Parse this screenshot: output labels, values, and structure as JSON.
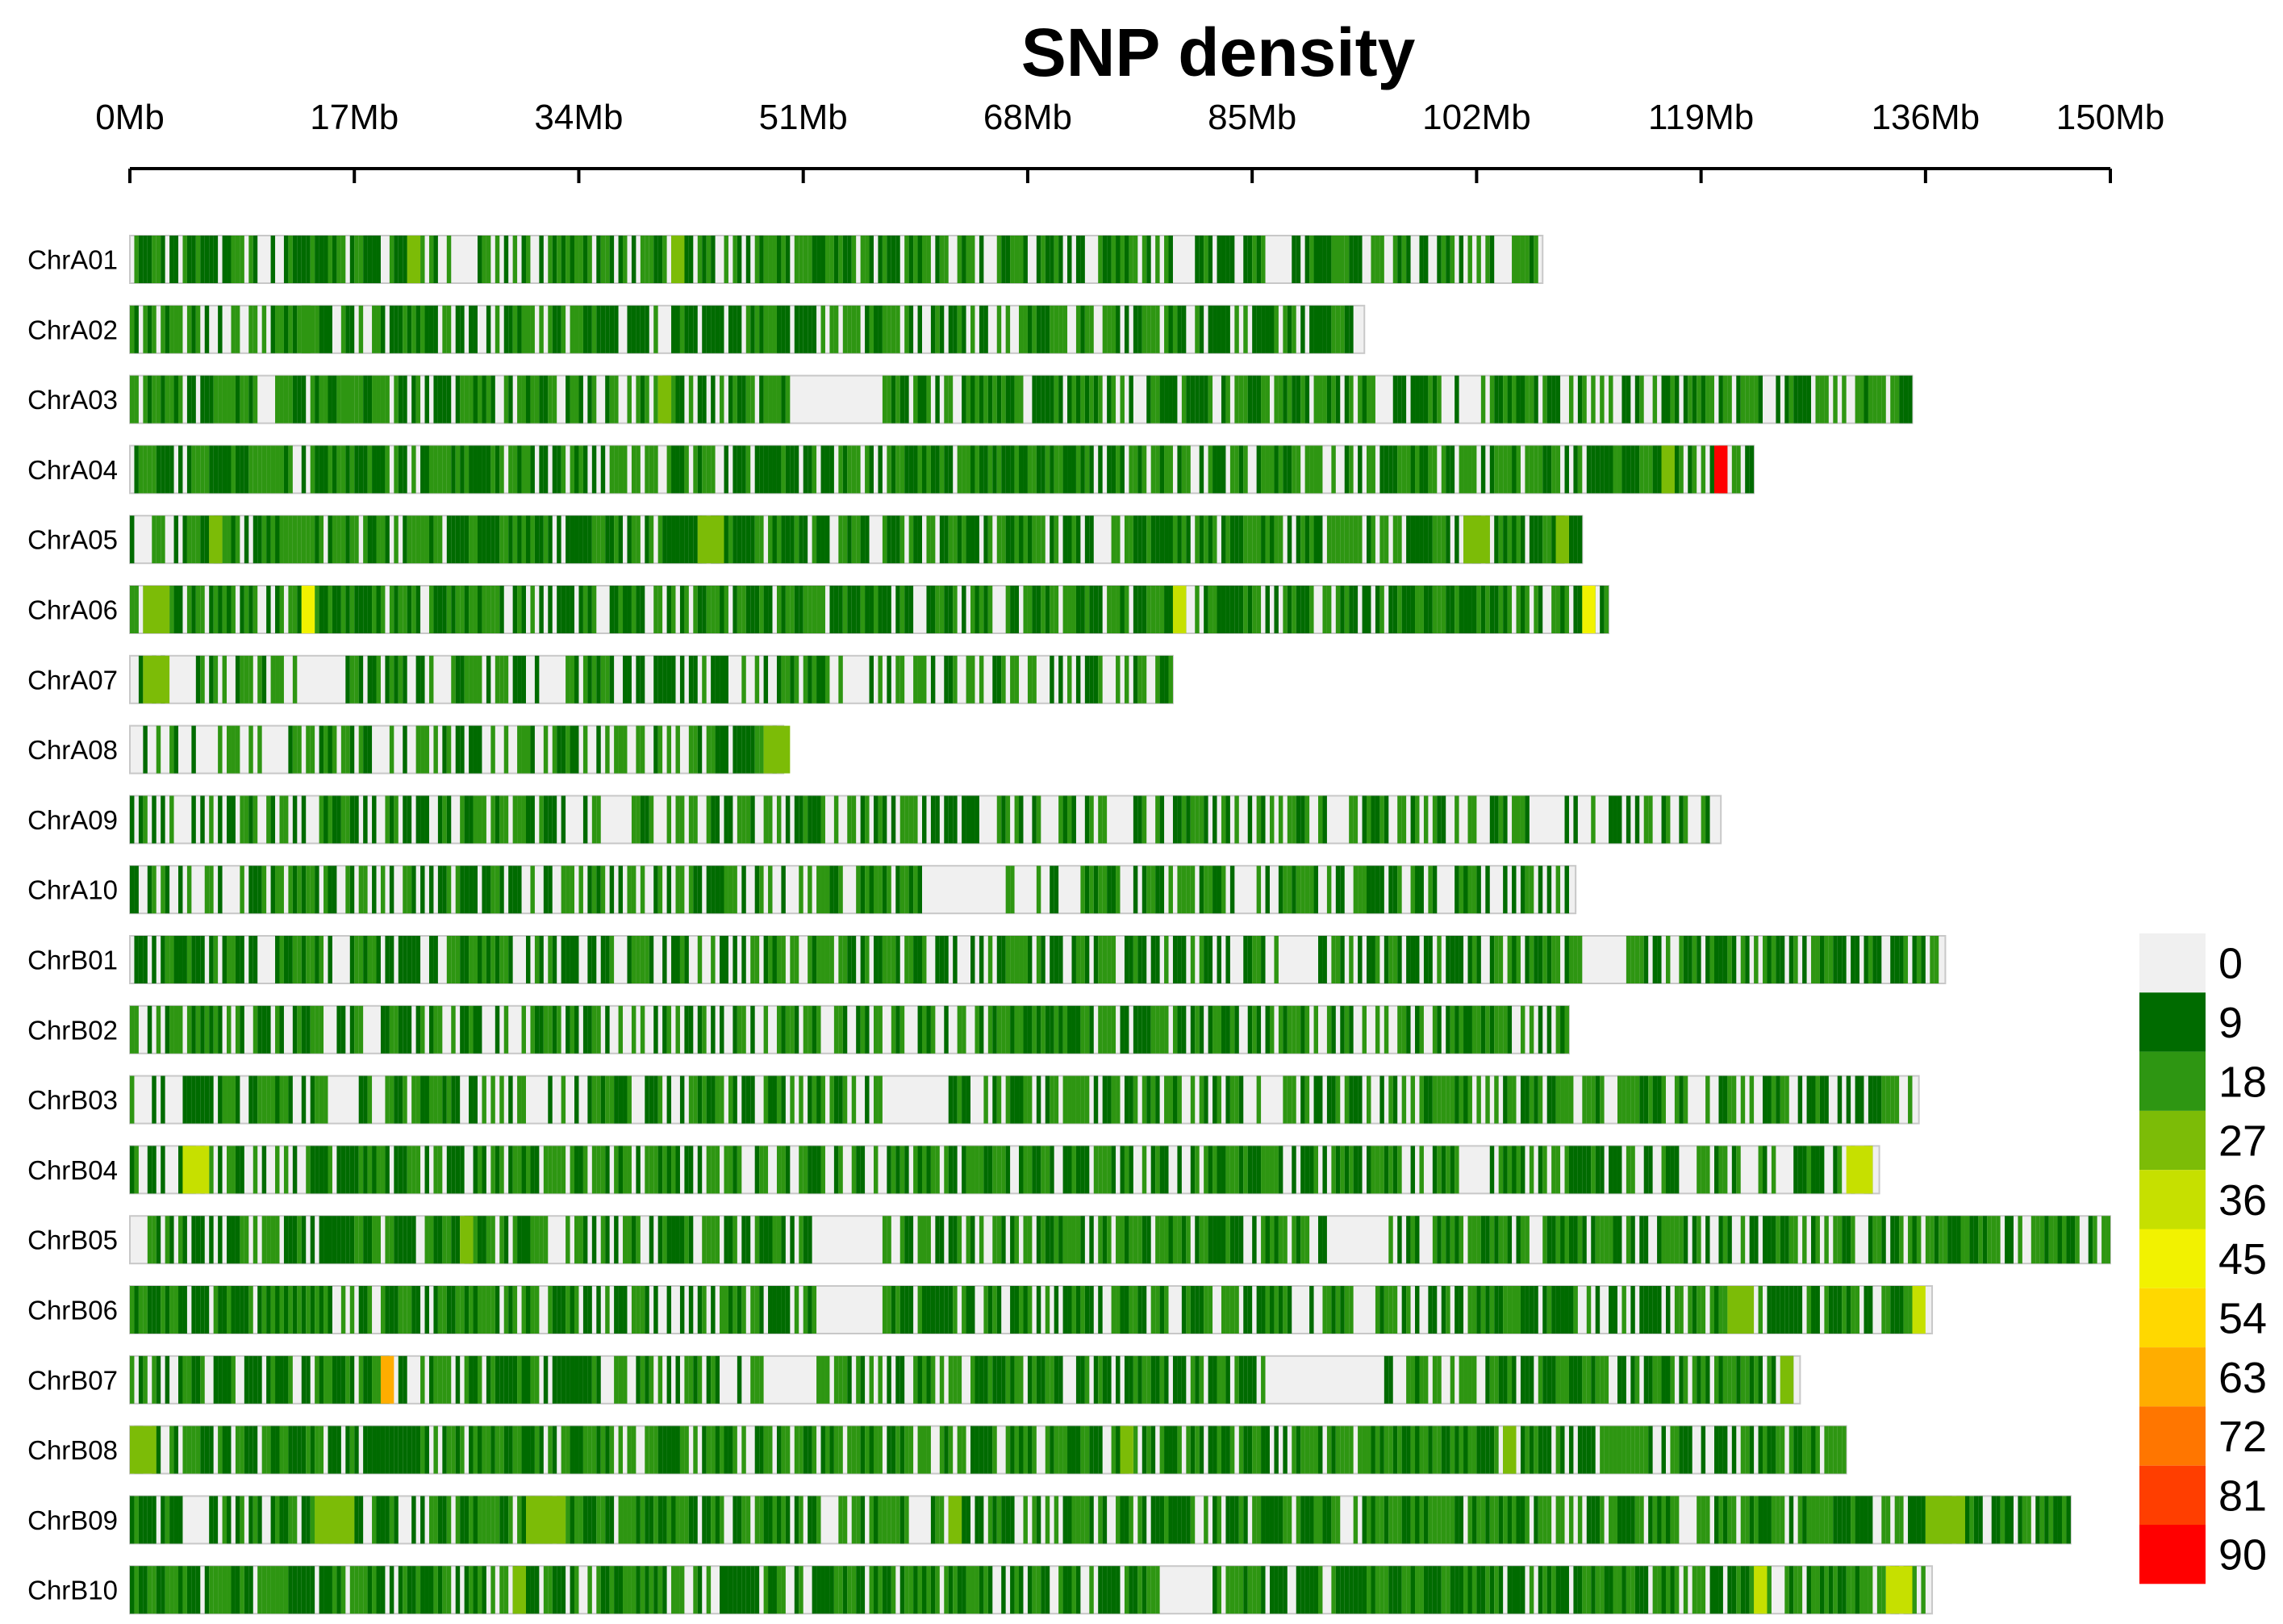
{
  "chart_data": {
    "type": "heatmap",
    "title": "SNP density",
    "x_axis": {
      "min": 0,
      "max": 150,
      "unit": "Mb",
      "ticks": [
        0,
        17,
        34,
        51,
        68,
        85,
        102,
        119,
        136,
        150
      ],
      "tick_labels": [
        "0Mb",
        "17Mb",
        "34Mb",
        "51Mb",
        "68Mb",
        "85Mb",
        "102Mb",
        "119Mb",
        "136Mb",
        "150Mb"
      ]
    },
    "bin_size_mb": 1,
    "chromosomes": [
      {
        "name": "ChrA01",
        "length_mb": 107,
        "zero_regions": [
          [
            86,
            88
          ]
        ],
        "hotspots": [
          [
            21,
            1,
            22
          ],
          [
            41,
            1,
            24
          ],
          [
            91,
            1,
            18
          ]
        ]
      },
      {
        "name": "ChrA02",
        "length_mb": 93.5,
        "zero_regions": [
          [
            40,
            41
          ]
        ],
        "hotspots": [
          [
            13,
            1,
            16
          ]
        ]
      },
      {
        "name": "ChrA03",
        "length_mb": 135,
        "zero_regions": [
          [
            50,
            57
          ]
        ],
        "hotspots": [
          [
            16,
            1,
            18
          ],
          [
            40,
            1,
            26
          ]
        ]
      },
      {
        "name": "ChrA04",
        "length_mb": 123,
        "zero_regions": [],
        "hotspots": [
          [
            116,
            1,
            26
          ],
          [
            120,
            1,
            90
          ]
        ]
      },
      {
        "name": "ChrA05",
        "length_mb": 110,
        "zero_regions": [],
        "hotspots": [
          [
            6,
            1,
            24
          ],
          [
            43,
            2,
            26
          ],
          [
            101,
            2,
            22
          ],
          [
            108,
            1,
            24
          ]
        ]
      },
      {
        "name": "ChrA06",
        "length_mb": 112,
        "zero_regions": [],
        "hotspots": [
          [
            1,
            2,
            26
          ],
          [
            13,
            1,
            38
          ],
          [
            79,
            1,
            36
          ],
          [
            110,
            1,
            40
          ]
        ]
      },
      {
        "name": "ChrA07",
        "length_mb": 79,
        "zero_regions": [
          [
            31,
            33
          ]
        ],
        "hotspots": [
          [
            1,
            2,
            24
          ]
        ]
      },
      {
        "name": "ChrA08",
        "length_mb": 49.5,
        "zero_regions": [],
        "hotspots": [
          [
            48,
            2,
            24
          ]
        ]
      },
      {
        "name": "ChrA09",
        "length_mb": 120.5,
        "zero_regions": [
          [
            36,
            38
          ],
          [
            74,
            76
          ],
          [
            106,
            108
          ]
        ],
        "hotspots": []
      },
      {
        "name": "ChrA10",
        "length_mb": 109.5,
        "zero_regions": [
          [
            60,
            66
          ]
        ],
        "hotspots": []
      },
      {
        "name": "ChrB01",
        "length_mb": 137.5,
        "zero_regions": [
          [
            87,
            90
          ],
          [
            110,
            113
          ]
        ],
        "hotspots": []
      },
      {
        "name": "ChrB02",
        "length_mb": 109,
        "zero_regions": [],
        "hotspots": []
      },
      {
        "name": "ChrB03",
        "length_mb": 135.5,
        "zero_regions": [
          [
            15,
            17
          ],
          [
            57,
            62
          ]
        ],
        "hotspots": []
      },
      {
        "name": "ChrB04",
        "length_mb": 132.5,
        "zero_regions": [],
        "hotspots": [
          [
            4,
            2,
            30
          ],
          [
            130,
            2,
            34
          ]
        ]
      },
      {
        "name": "ChrB05",
        "length_mb": 150,
        "zero_regions": [
          [
            0,
            1
          ],
          [
            52,
            57
          ],
          [
            91,
            95
          ]
        ],
        "hotspots": [
          [
            25,
            1,
            24
          ]
        ]
      },
      {
        "name": "ChrB06",
        "length_mb": 136.5,
        "zero_regions": [
          [
            52,
            57
          ]
        ],
        "hotspots": [
          [
            121,
            2,
            24
          ],
          [
            135,
            1,
            30
          ]
        ]
      },
      {
        "name": "ChrB07",
        "length_mb": 126.5,
        "zero_regions": [
          [
            48,
            52
          ],
          [
            86,
            95
          ]
        ],
        "hotspots": [
          [
            19,
            1,
            58
          ],
          [
            125,
            1,
            20
          ]
        ]
      },
      {
        "name": "ChrB08",
        "length_mb": 130,
        "zero_regions": [],
        "hotspots": [
          [
            0,
            2,
            22
          ],
          [
            75,
            1,
            22
          ],
          [
            104,
            1,
            24
          ]
        ]
      },
      {
        "name": "ChrB09",
        "length_mb": 147,
        "zero_regions": [],
        "hotspots": [
          [
            14,
            3,
            24
          ],
          [
            30,
            3,
            24
          ],
          [
            62,
            1,
            24
          ],
          [
            136,
            3,
            26
          ]
        ]
      },
      {
        "name": "ChrB10",
        "length_mb": 136.5,
        "zero_regions": [
          [
            78,
            82
          ]
        ],
        "hotspots": [
          [
            29,
            1,
            24
          ],
          [
            123,
            1,
            34
          ],
          [
            133,
            2,
            30
          ]
        ]
      }
    ],
    "legend": {
      "title": "",
      "levels": [
        0,
        9,
        18,
        27,
        36,
        45,
        54,
        63,
        72,
        81,
        90
      ],
      "colors": [
        "#f0f0f0",
        "#006b00",
        "#2e9612",
        "#7cbc07",
        "#c6e000",
        "#f2f200",
        "#ffd800",
        "#ffad00",
        "#ff7600",
        "#ff3e00",
        "#ff0000"
      ]
    }
  }
}
